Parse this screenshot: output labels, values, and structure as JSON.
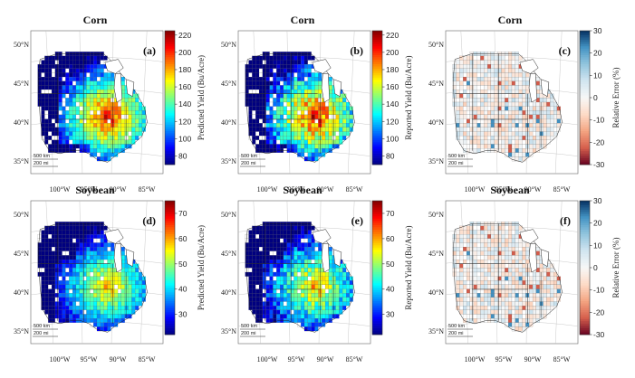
{
  "panels": [
    {
      "id": "a",
      "title": "Corn",
      "label": "(a)",
      "colorbar": {
        "label": "Predicted Yield (Bu/Acre)",
        "colormap": "jet",
        "min": 70,
        "max": 225,
        "ticks": [
          "220",
          "200",
          "180",
          "160",
          "140",
          "120",
          "100",
          "80"
        ]
      }
    },
    {
      "id": "b",
      "title": "Corn",
      "label": "(b)",
      "colorbar": {
        "label": "Reported Yield (Bu/Acre)",
        "colormap": "jet",
        "min": 70,
        "max": 225,
        "ticks": [
          "220",
          "200",
          "180",
          "160",
          "140",
          "120",
          "100",
          "80"
        ]
      }
    },
    {
      "id": "c",
      "title": "Corn",
      "label": "(c)",
      "colorbar": {
        "label": "Relative Error (%)",
        "colormap": "diverging",
        "min": -30,
        "max": 30,
        "ticks": [
          "30",
          "20",
          "10",
          "0",
          "-10",
          "-20",
          "-30"
        ]
      }
    },
    {
      "id": "d",
      "title": "Soybean",
      "label": "(d)",
      "colorbar": {
        "label": "Predicted Yield (Bu/Acre)",
        "colormap": "jet",
        "min": 22,
        "max": 75,
        "ticks": [
          "70",
          "60",
          "50",
          "40",
          "30"
        ]
      }
    },
    {
      "id": "e",
      "title": "Soybean",
      "label": "(e)",
      "colorbar": {
        "label": "Reported Yield (Bu/Acre)",
        "colormap": "jet",
        "min": 22,
        "max": 75,
        "ticks": [
          "70",
          "60",
          "50",
          "40",
          "30"
        ]
      }
    },
    {
      "id": "f",
      "title": "Soybean",
      "label": "(f)",
      "colorbar": {
        "label": "Relative Error (%)",
        "colormap": "diverging",
        "min": -30,
        "max": 30,
        "ticks": [
          "30",
          "20",
          "10",
          "0",
          "-10",
          "-20",
          "-30"
        ]
      }
    }
  ],
  "lat_labels": [
    "50°N",
    "45°N",
    "40°N",
    "35°N"
  ],
  "lon_labels": [
    "100°W",
    "95°W",
    "90°W",
    "85°W"
  ],
  "scale_bar": {
    "km": "500 km",
    "mi": "200 mi"
  },
  "colors": {
    "jet": [
      "#00007f",
      "#0000ff",
      "#007fff",
      "#00ffff",
      "#7fff7f",
      "#ffff00",
      "#ff7f00",
      "#ff0000",
      "#7f0000"
    ],
    "diverging": [
      "#67001f",
      "#d6604d",
      "#f4a582",
      "#fddbc7",
      "#f7f7f7",
      "#d1e5f0",
      "#92c5de",
      "#4393c3",
      "#053061"
    ],
    "no_data": "#ffffff",
    "county_outline": "#444444"
  }
}
